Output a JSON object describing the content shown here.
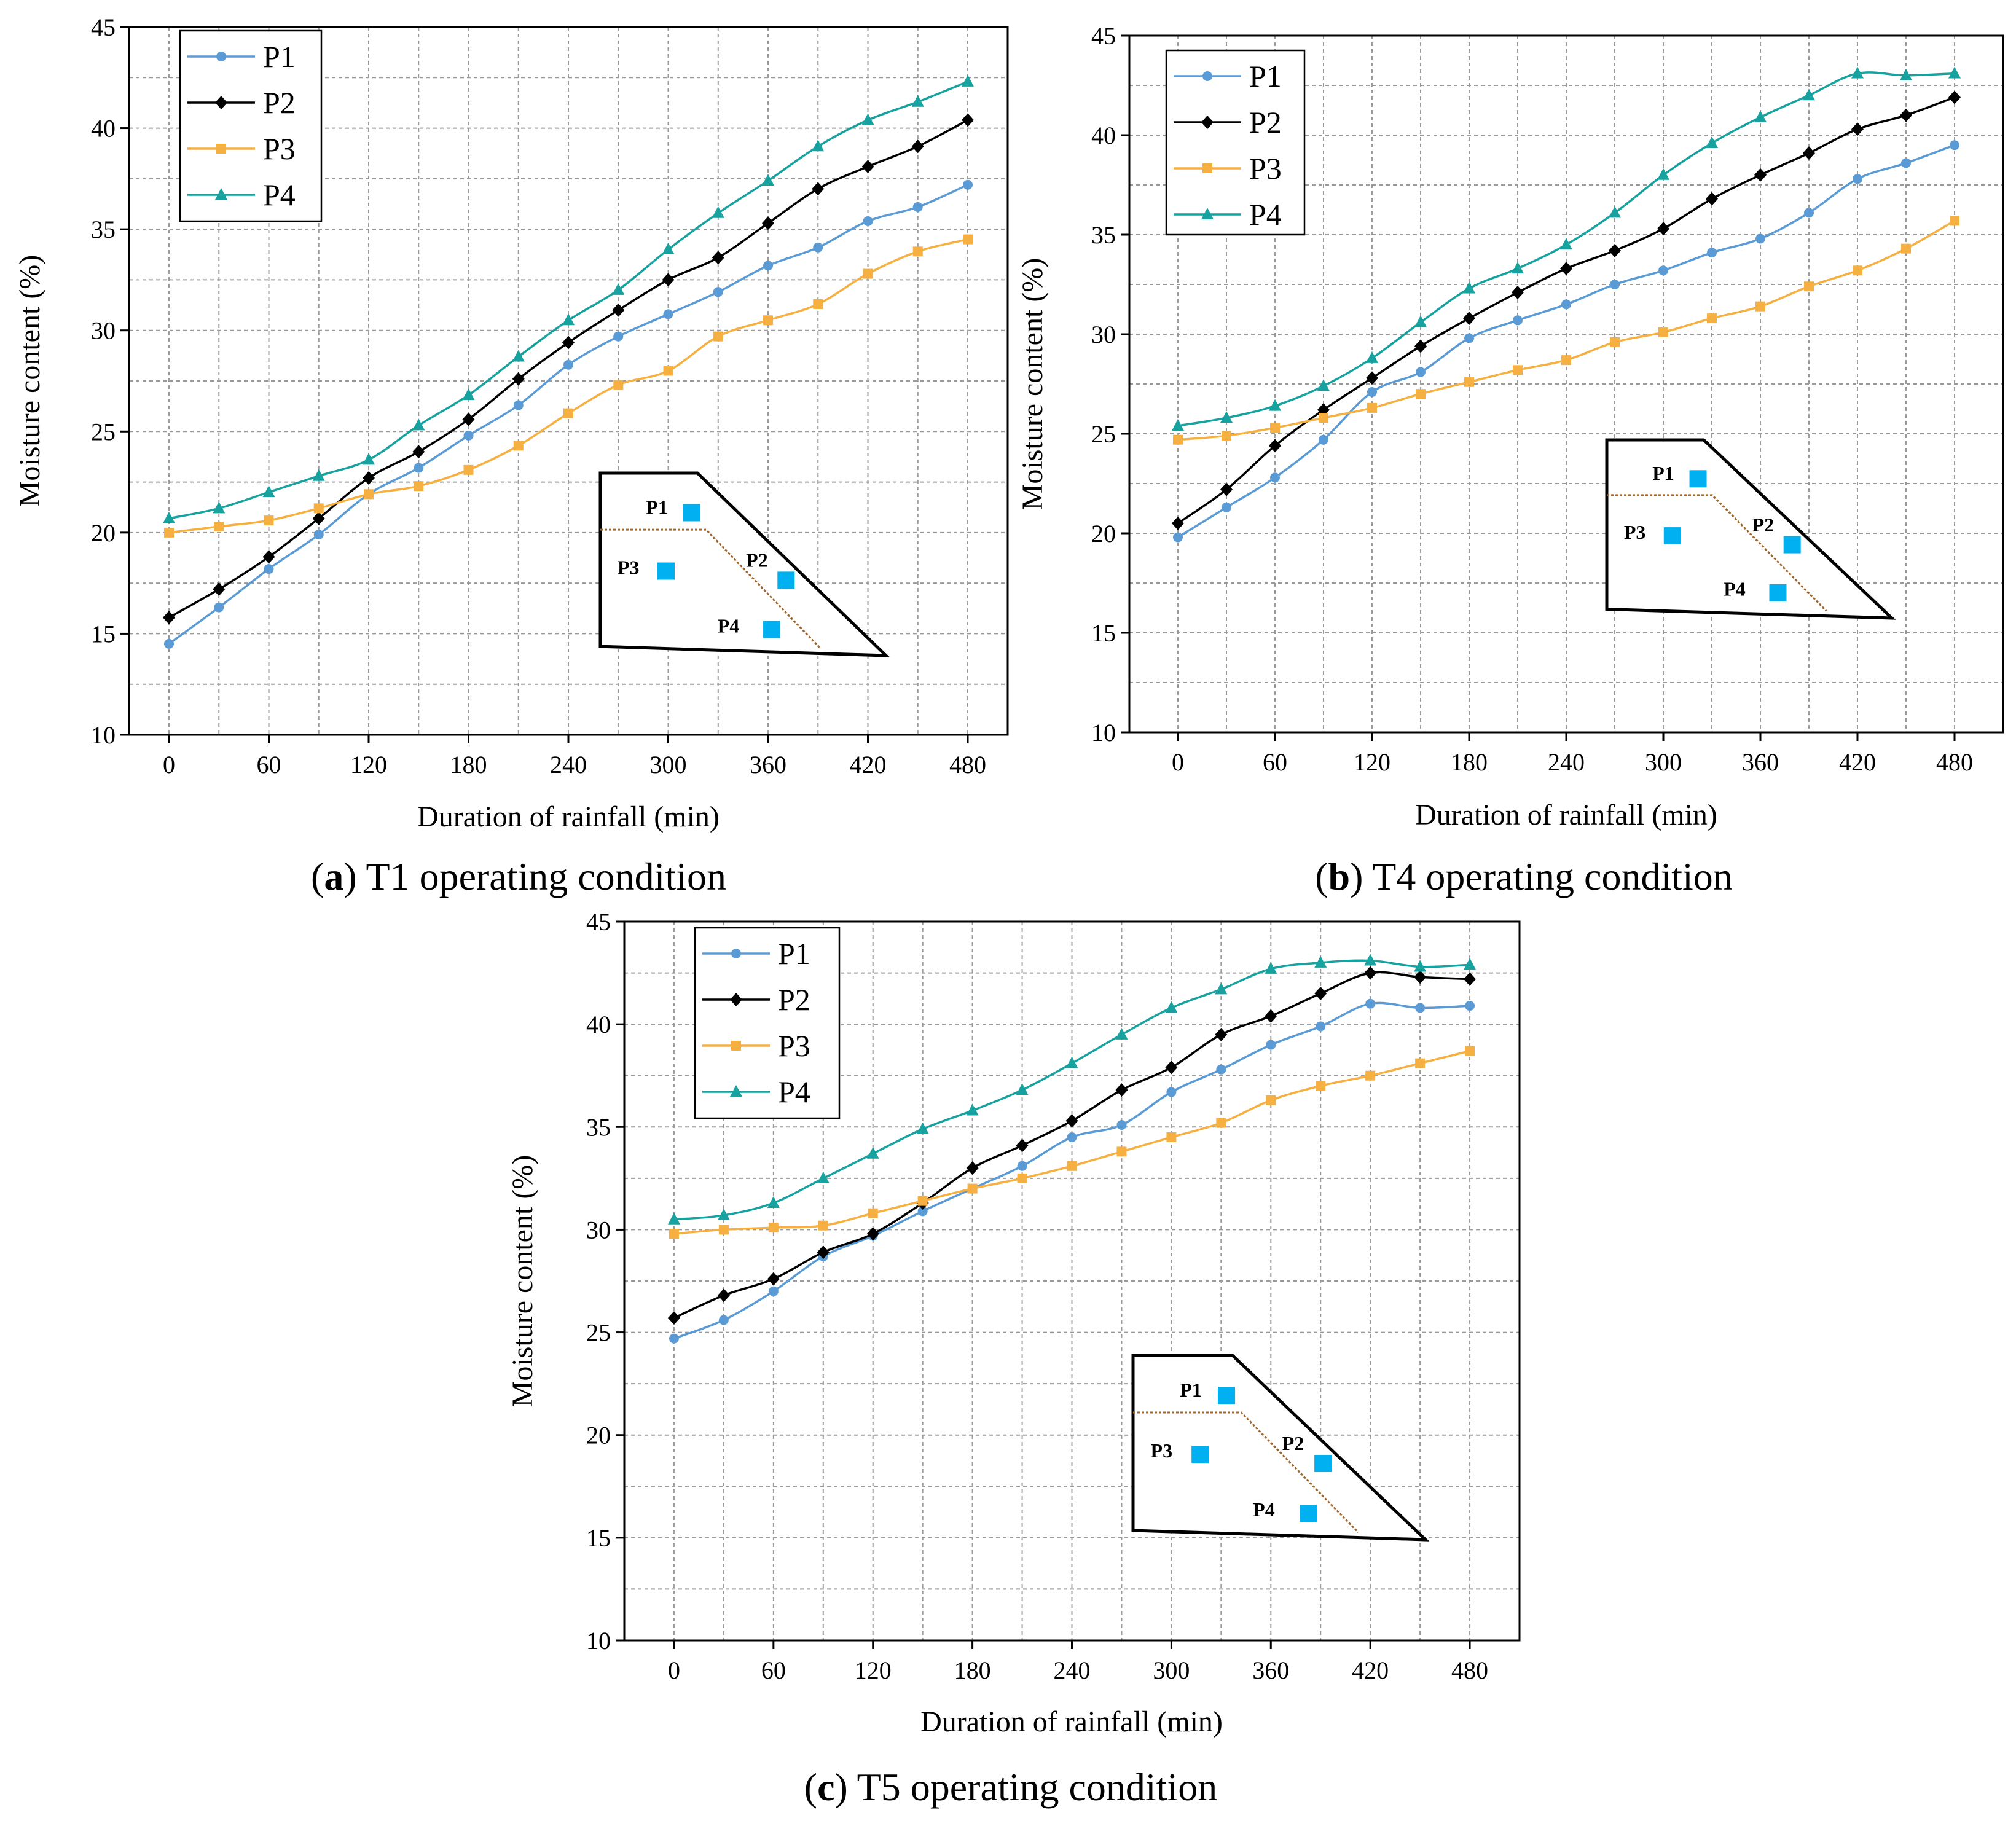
{
  "figure": {
    "captions": [
      {
        "letter": "a",
        "rest": " T1 operating condition"
      },
      {
        "letter": "b",
        "rest": " T4 operating condition"
      },
      {
        "letter": "c",
        "rest": " T5 operating condition"
      }
    ],
    "inset_labels": [
      "P1",
      "P2",
      "P3",
      "P4"
    ]
  },
  "colors": {
    "P1": "#5b9bd5",
    "P2": "#000000",
    "P3": "#f5b041",
    "P4": "#17a2a0",
    "marker_square": "#00b0f0",
    "wetting_line": "#a0662a",
    "grid": "#9a9a9a"
  },
  "chart_data": [
    {
      "type": "line",
      "panel": "a",
      "x": [
        0,
        30,
        60,
        90,
        120,
        150,
        180,
        210,
        240,
        270,
        300,
        330,
        360,
        390,
        420,
        450,
        480
      ],
      "xticks": [
        0,
        60,
        120,
        180,
        240,
        300,
        360,
        420,
        480
      ],
      "yticks": [
        10,
        15,
        20,
        25,
        30,
        35,
        40,
        45
      ],
      "xlim": [
        -24,
        504
      ],
      "ylim": [
        10,
        45
      ],
      "xlabel": "Duration of rainfall (min)",
      "ylabel": "Moisture content  (%)",
      "grid": true,
      "legend": "top-left",
      "series": [
        {
          "name": "P1",
          "marker": "circle",
          "values": [
            14.5,
            16.3,
            18.2,
            19.9,
            21.9,
            23.2,
            24.8,
            26.3,
            28.3,
            29.7,
            30.8,
            31.9,
            33.2,
            34.1,
            35.4,
            36.1,
            37.2
          ]
        },
        {
          "name": "P2",
          "marker": "diamond",
          "values": [
            15.8,
            17.2,
            18.8,
            20.7,
            22.7,
            24.0,
            25.6,
            27.6,
            29.4,
            31.0,
            32.5,
            33.6,
            35.3,
            37.0,
            38.1,
            39.1,
            40.4
          ]
        },
        {
          "name": "P3",
          "marker": "square",
          "values": [
            20.0,
            20.3,
            20.6,
            21.2,
            21.9,
            22.3,
            23.1,
            24.3,
            25.9,
            27.3,
            28.0,
            29.7,
            30.5,
            31.3,
            32.8,
            33.9,
            34.5
          ]
        },
        {
          "name": "P4",
          "marker": "triangle",
          "values": [
            20.7,
            21.2,
            22.0,
            22.8,
            23.6,
            25.3,
            26.8,
            28.7,
            30.5,
            32.0,
            34.0,
            35.8,
            37.4,
            39.1,
            40.4,
            41.3,
            42.3
          ]
        }
      ]
    },
    {
      "type": "line",
      "panel": "b",
      "x": [
        0,
        30,
        60,
        90,
        120,
        150,
        180,
        210,
        240,
        270,
        300,
        330,
        360,
        390,
        420,
        450,
        480
      ],
      "xticks": [
        0,
        60,
        120,
        180,
        240,
        300,
        360,
        420,
        480
      ],
      "yticks": [
        10,
        15,
        20,
        25,
        30,
        35,
        40,
        45
      ],
      "xlim": [
        -30,
        510
      ],
      "ylim": [
        10,
        45
      ],
      "xlabel": "Duration of rainfall (min)",
      "ylabel": "Moisture content (%)",
      "grid": true,
      "legend": "top-left",
      "series": [
        {
          "name": "P1",
          "marker": "circle",
          "values": [
            19.8,
            21.3,
            22.8,
            24.7,
            27.1,
            28.1,
            29.8,
            30.7,
            31.5,
            32.5,
            33.2,
            34.1,
            34.8,
            36.1,
            37.8,
            38.6,
            39.5
          ]
        },
        {
          "name": "P2",
          "marker": "diamond",
          "values": [
            20.5,
            22.2,
            24.4,
            26.2,
            27.8,
            29.4,
            30.8,
            32.1,
            33.3,
            34.2,
            35.3,
            36.8,
            38.0,
            39.1,
            40.3,
            41.0,
            41.9
          ]
        },
        {
          "name": "P3",
          "marker": "square",
          "values": [
            24.7,
            24.9,
            25.3,
            25.8,
            26.3,
            27.0,
            27.6,
            28.2,
            28.7,
            29.6,
            30.1,
            30.8,
            31.4,
            32.4,
            33.2,
            34.3,
            35.7
          ]
        },
        {
          "name": "P4",
          "marker": "triangle",
          "values": [
            25.4,
            25.8,
            26.4,
            27.4,
            28.8,
            30.6,
            32.3,
            33.3,
            34.5,
            36.1,
            38.0,
            39.6,
            40.9,
            42.0,
            43.1,
            43.0,
            43.1
          ]
        }
      ]
    },
    {
      "type": "line",
      "panel": "c",
      "x": [
        0,
        30,
        60,
        90,
        120,
        150,
        180,
        210,
        240,
        270,
        300,
        330,
        360,
        390,
        420,
        450,
        480
      ],
      "xticks": [
        0,
        60,
        120,
        180,
        240,
        300,
        360,
        420,
        480
      ],
      "yticks": [
        10,
        15,
        20,
        25,
        30,
        35,
        40,
        45
      ],
      "xlim": [
        -30,
        510
      ],
      "ylim": [
        10,
        45
      ],
      "xlabel": "Duration of rainfall (min)",
      "ylabel": "Moisture content  (%)",
      "grid": true,
      "legend": "top-left",
      "series": [
        {
          "name": "P1",
          "marker": "circle",
          "values": [
            24.7,
            25.6,
            27.0,
            28.7,
            29.7,
            30.9,
            32.0,
            33.1,
            34.5,
            35.1,
            36.7,
            37.8,
            39.0,
            39.9,
            41.0,
            40.8,
            40.9
          ]
        },
        {
          "name": "P2",
          "marker": "diamond",
          "values": [
            25.7,
            26.8,
            27.6,
            28.9,
            29.8,
            31.3,
            33.0,
            34.1,
            35.3,
            36.8,
            37.9,
            39.5,
            40.4,
            41.5,
            42.5,
            42.3,
            42.2
          ]
        },
        {
          "name": "P3",
          "marker": "square",
          "values": [
            29.8,
            30.0,
            30.1,
            30.2,
            30.8,
            31.4,
            32.0,
            32.5,
            33.1,
            33.8,
            34.5,
            35.2,
            36.3,
            37.0,
            37.5,
            38.1,
            38.7
          ]
        },
        {
          "name": "P4",
          "marker": "triangle",
          "values": [
            30.5,
            30.7,
            31.3,
            32.5,
            33.7,
            34.9,
            35.8,
            36.8,
            38.1,
            39.5,
            40.8,
            41.7,
            42.7,
            43.0,
            43.1,
            42.8,
            42.9
          ]
        }
      ]
    }
  ]
}
